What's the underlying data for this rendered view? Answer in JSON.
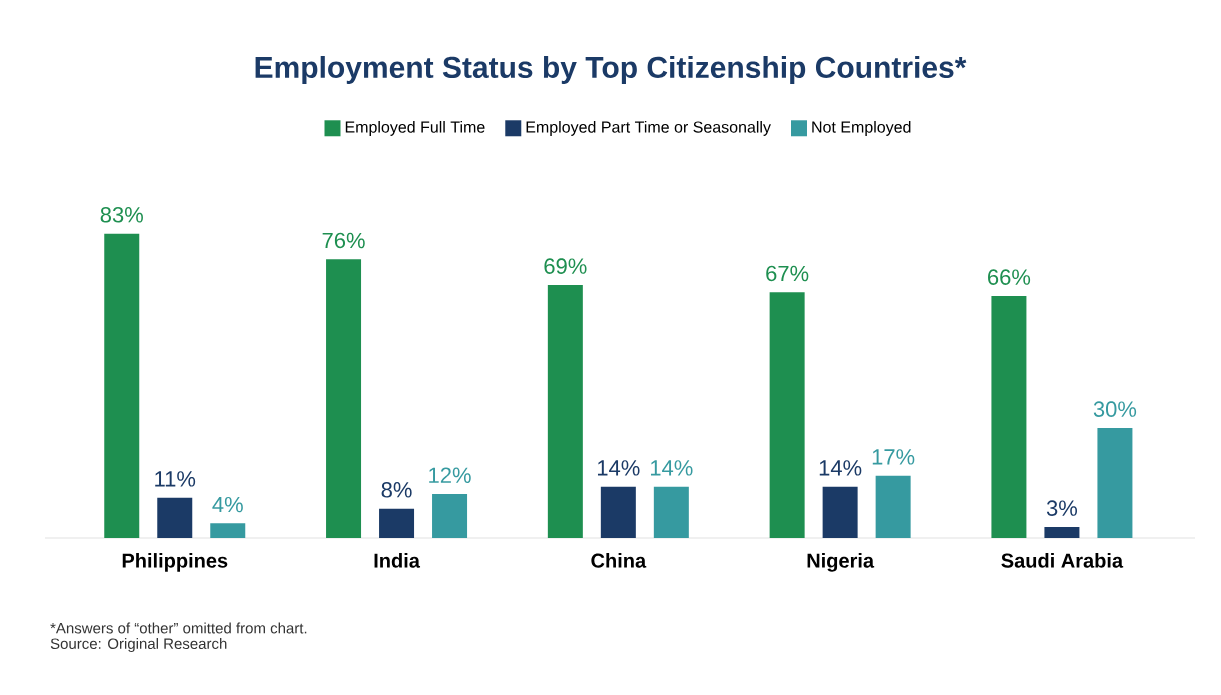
{
  "chart_data": {
    "type": "bar",
    "title": "Employment Status by Top Citizenship Countries*",
    "categories": [
      "Philippines",
      "India",
      "China",
      "Nigeria",
      "Saudi Arabia"
    ],
    "series": [
      {
        "name": "Employed Full Time",
        "color": "#1e8f50",
        "values": [
          83,
          76,
          69,
          67,
          66
        ],
        "value_labels": [
          "83%",
          "76%",
          "69%",
          "67%",
          "66%"
        ]
      },
      {
        "name": "Employed Part Time or Seasonally",
        "color": "#1b3a66",
        "values": [
          11,
          8,
          14,
          14,
          3
        ],
        "value_labels": [
          "11%",
          "8%",
          "14%",
          "14%",
          "3%"
        ]
      },
      {
        "name": "Not Employed",
        "color": "#369aa0",
        "values": [
          4,
          12,
          14,
          17,
          30
        ],
        "value_labels": [
          "4%",
          "12%",
          "14%",
          "17%",
          "30%"
        ]
      }
    ],
    "legend": "top",
    "annotations": [
      "*Answers of “other” omitted from chart.",
      "Source: Original Research"
    ]
  }
}
